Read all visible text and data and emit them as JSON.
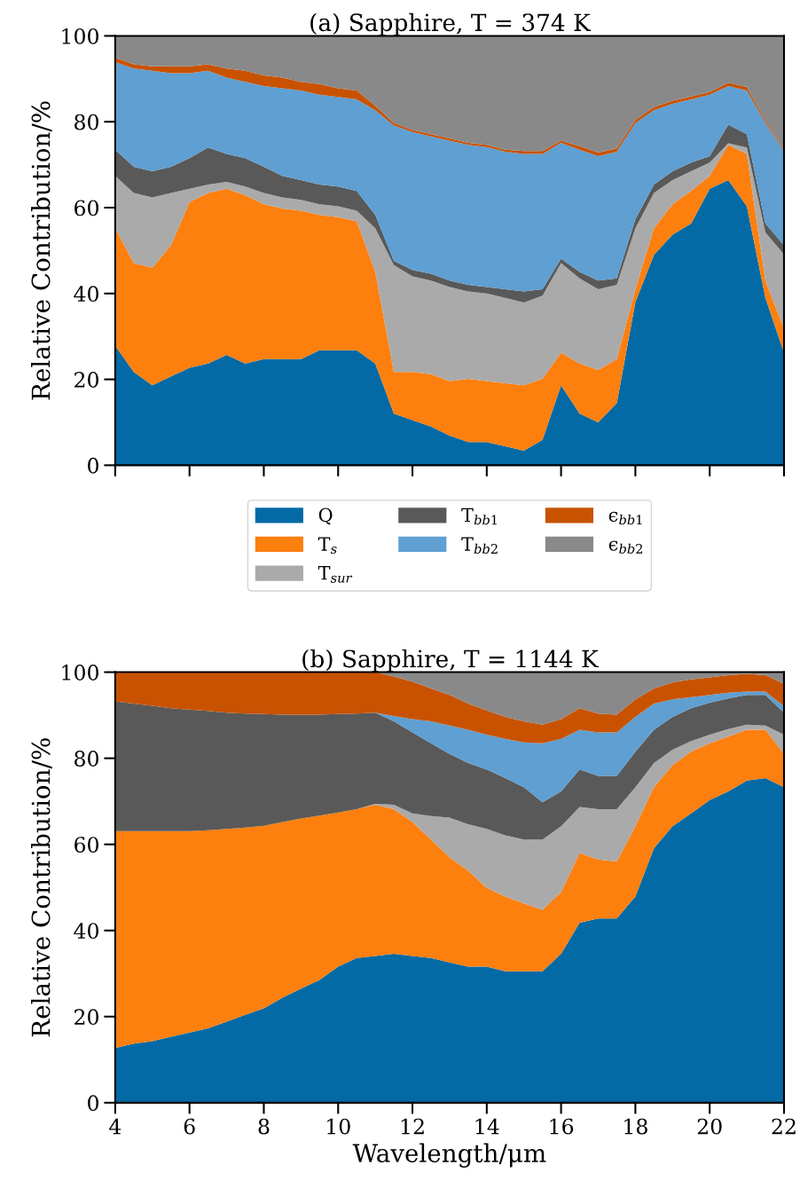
{
  "chart_data": [
    {
      "type": "area",
      "stacked": true,
      "title": "(a) Sapphire, T = 374 K",
      "ylabel": "Relative Contribution/%",
      "tick_labels": "y",
      "legend": "bottom",
      "x": [
        4,
        4.5,
        5,
        5.5,
        6,
        6.5,
        7,
        7.5,
        8,
        8.5,
        9,
        9.5,
        10,
        10.5,
        11,
        11.5,
        12,
        12.5,
        13,
        13.5,
        14,
        14.5,
        15,
        15.5,
        16,
        16.5,
        17,
        17.5,
        18,
        18.5,
        19,
        19.5,
        20,
        20.5,
        21,
        21.5,
        22
      ],
      "xlim": [
        4,
        22
      ],
      "xticks": [
        4,
        6,
        8,
        10,
        12,
        14,
        16,
        18,
        20,
        22
      ],
      "ylim": [
        0,
        100
      ],
      "yticks": [
        0,
        20,
        40,
        60,
        80,
        100
      ],
      "series": [
        {
          "name": "Q",
          "color": "#036aa5",
          "values": [
            27.8,
            21.7,
            18.6,
            20.7,
            22.7,
            23.7,
            25.7,
            23.7,
            24.7,
            24.7,
            24.7,
            26.8,
            26.8,
            26.8,
            23.7,
            12,
            10.5,
            9,
            6.9,
            5.4,
            5.4,
            4.4,
            3.4,
            5.9,
            18.6,
            12,
            10,
            14.5,
            38,
            49,
            53.7,
            56.3,
            64.4,
            66.4,
            60.3,
            39,
            26.2
          ]
        },
        {
          "name": "T$_{s}$",
          "color": "#fd7f0e",
          "values": [
            27.4,
            25.4,
            27.4,
            30.5,
            38.6,
            39.7,
            38.7,
            39.2,
            36.1,
            35.1,
            34.6,
            31.5,
            31,
            30,
            21.3,
            9.7,
            11.2,
            12.2,
            12.7,
            14.7,
            14.2,
            14.7,
            15.2,
            14.2,
            7.6,
            11.7,
            12.2,
            10.2,
            3,
            6.2,
            7.1,
            7.6,
            3,
            8.2,
            12.2,
            4,
            5.6
          ]
        },
        {
          "name": "T$_{sur}$",
          "color": "#aaaaaa",
          "values": [
            12.2,
            16.3,
            16.4,
            12.2,
            3.1,
            2,
            1.6,
            2,
            2.6,
            2.6,
            2.5,
            2.5,
            2.5,
            2.5,
            10.2,
            24.9,
            22.3,
            21.8,
            21.9,
            20.4,
            20.4,
            19.9,
            19.3,
            19.4,
            20.9,
            19.8,
            18.8,
            17.3,
            14.2,
            8.2,
            5.6,
            4.6,
            3.1,
            0.4,
            1.5,
            11.2,
            17.3
          ]
        },
        {
          "name": "T$_{bb1}$",
          "color": "#595959",
          "values": [
            6.1,
            6.1,
            6.1,
            6.1,
            7.1,
            8.6,
            6.5,
            6.6,
            6.1,
            5,
            4.6,
            4.6,
            4.6,
            4.6,
            3.1,
            1,
            1.5,
            1.6,
            1.5,
            1.5,
            1.5,
            2,
            2.6,
            1.5,
            1,
            1.5,
            2,
            1.5,
            2.1,
            2,
            2.1,
            2,
            1.5,
            4.3,
            3.1,
            2.1,
            2.1
          ]
        },
        {
          "name": "T$_{bb2}$",
          "color": "#5f9fd2",
          "values": [
            20.4,
            22.9,
            23.4,
            21.8,
            19.8,
            17.9,
            17.8,
            17.8,
            18.8,
            20.4,
            20.9,
            20.9,
            20.9,
            21.3,
            24.4,
            31.5,
            32.1,
            32,
            32.6,
            32.6,
            32.6,
            32,
            32,
            31.5,
            27,
            28.5,
            29,
            29.5,
            22.4,
            17.3,
            15.7,
            14.7,
            14.3,
            9,
            10.2,
            23.4,
            21.8
          ]
        },
        {
          "name": "ϵ$_{bb1}$",
          "color": "#c85200",
          "values": [
            1,
            1,
            1,
            1.6,
            1.6,
            1.5,
            2.1,
            2.6,
            2.5,
            2.5,
            2,
            2.5,
            2,
            2.1,
            1,
            0.6,
            0.5,
            0.5,
            0.5,
            0.5,
            0.5,
            0.5,
            0.7,
            0.7,
            0.5,
            0.8,
            0.8,
            0.8,
            0.7,
            0.7,
            0.7,
            0.7,
            0.6,
            0.8,
            0.8,
            0.5,
            0.3
          ]
        },
        {
          "name": "ϵ$_{bb2}$",
          "color": "#898989",
          "values": [
            5.1,
            6.6,
            7.1,
            7.1,
            7.1,
            6.6,
            7.6,
            8.1,
            9.2,
            9.7,
            10.7,
            11.2,
            12.2,
            12.7,
            16.3,
            20.3,
            21.9,
            22.9,
            23.9,
            24.9,
            25.4,
            26.5,
            26.8,
            26.8,
            24.4,
            25.7,
            27.2,
            26.2,
            19.6,
            16.6,
            15.1,
            14.1,
            13.1,
            10.9,
            11.9,
            19.8,
            26.7
          ]
        }
      ]
    },
    {
      "type": "area",
      "stacked": true,
      "title": "(b) Sapphire, T = 1144 K",
      "xlabel": "Wavelength/μm",
      "ylabel": "Relative Contribution/%",
      "x": [
        4,
        4.5,
        5,
        5.5,
        6,
        6.5,
        7,
        7.5,
        8,
        8.5,
        9,
        9.5,
        10,
        10.5,
        11,
        11.5,
        12,
        12.5,
        13,
        13.5,
        14,
        14.5,
        15,
        15.5,
        16,
        16.5,
        17,
        17.5,
        18,
        18.5,
        19,
        19.5,
        20,
        20.5,
        21,
        21.5,
        22
      ],
      "xlim": [
        4,
        22
      ],
      "xticks": [
        4,
        6,
        8,
        10,
        12,
        14,
        16,
        18,
        20,
        22
      ],
      "ylim": [
        0,
        100
      ],
      "yticks": [
        0,
        20,
        40,
        60,
        80,
        100
      ],
      "series": [
        {
          "color": "#036aa5",
          "values": [
            12.7,
            13.7,
            14.3,
            15.3,
            16.3,
            17.3,
            18.8,
            20.4,
            21.9,
            24.4,
            26.5,
            28.5,
            31.6,
            33.6,
            34.1,
            34.6,
            34.1,
            33.6,
            32.6,
            31.6,
            31.6,
            30.5,
            30.5,
            30.5,
            34.6,
            41.8,
            42.8,
            42.8,
            47.9,
            59.1,
            64.2,
            67.2,
            70.3,
            72.3,
            74.8,
            75.4,
            73.3
          ]
        },
        {
          "color": "#fd7f0e",
          "values": [
            50.4,
            49.4,
            48.8,
            47.8,
            46.8,
            46,
            44.8,
            43.5,
            42.4,
            40.8,
            39.5,
            38.2,
            35.8,
            34.6,
            35.1,
            33.6,
            31.1,
            27.5,
            24.4,
            22.3,
            18.3,
            17.4,
            15.8,
            14.3,
            14.3,
            16.2,
            13.7,
            13.2,
            16.3,
            14.2,
            14.2,
            14.3,
            13.2,
            12.7,
            11.8,
            11.2,
            7.7
          ]
        },
        {
          "color": "#aaaaaa",
          "values": [
            0,
            0,
            0,
            0,
            0,
            0,
            0,
            0,
            0,
            0,
            0,
            0,
            0,
            0,
            0.2,
            1,
            2,
            5.5,
            9.2,
            10.8,
            13.7,
            14.2,
            14.8,
            16.3,
            15.3,
            10.7,
            11.7,
            12.2,
            9.1,
            5.6,
            3.6,
            2.5,
            2,
            1.8,
            1.2,
            1,
            4.5
          ]
        },
        {
          "color": "#595959",
          "values": [
            30.1,
            29.6,
            29.1,
            28.5,
            28.2,
            27.7,
            27,
            26.5,
            26,
            24.9,
            24.1,
            23.4,
            22.9,
            22.2,
            21.2,
            19.4,
            18.8,
            16.9,
            14.8,
            14.2,
            13.8,
            13.3,
            12.2,
            8.7,
            8.1,
            8.7,
            7.7,
            7.7,
            8.2,
            7.7,
            7.6,
            7.6,
            7.4,
            7.1,
            6.9,
            7.1,
            5.1
          ]
        },
        {
          "color": "#5f9fd2",
          "values": [
            0,
            0,
            0,
            0,
            0,
            0,
            0,
            0,
            0,
            0,
            0,
            0,
            0,
            0,
            0,
            1.2,
            3.1,
            5.1,
            6.6,
            7.7,
            8.1,
            9.1,
            10.4,
            13.7,
            12.2,
            9.2,
            10.1,
            10.1,
            8.1,
            6.1,
            4.1,
            2.6,
            1.8,
            1.3,
            0.8,
            0.8,
            1.5
          ]
        },
        {
          "color": "#c85200",
          "values": [
            6.8,
            7.3,
            7.8,
            8.4,
            8.7,
            9,
            9.4,
            9.6,
            9.7,
            9.9,
            9.9,
            9.9,
            9.7,
            9.6,
            9.4,
            9.2,
            8.7,
            7.6,
            7.1,
            6.1,
            5.6,
            5.1,
            4.9,
            4.3,
            4.6,
            5,
            4.4,
            4.1,
            4.1,
            3.5,
            3.9,
            4.1,
            4.1,
            4.1,
            4.1,
            3.8,
            5.2
          ]
        },
        {
          "color": "#898989",
          "values": [
            0,
            0,
            0,
            0,
            0,
            0,
            0,
            0,
            0,
            0,
            0,
            0,
            0,
            0,
            0,
            1,
            2.2,
            3.8,
            5.3,
            7.3,
            8.9,
            10.4,
            11.4,
            12.2,
            10.9,
            8.4,
            9.6,
            9.9,
            6.3,
            3.8,
            2.4,
            1.7,
            1.2,
            0.7,
            0.4,
            0.7,
            2.7
          ]
        }
      ]
    }
  ]
}
